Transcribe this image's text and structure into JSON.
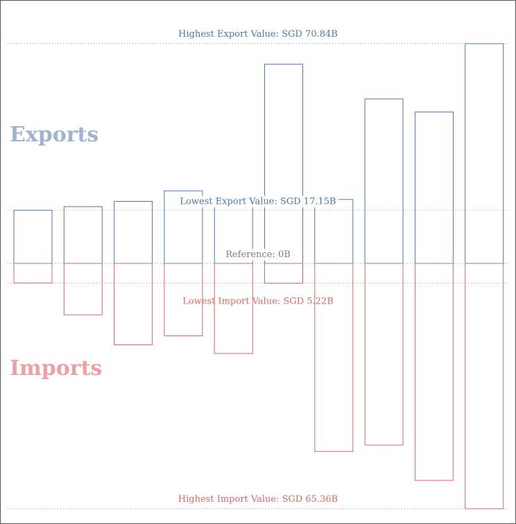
{
  "chart_data": {
    "type": "bar",
    "series": [
      {
        "name": "Exports",
        "direction": "up",
        "color": "#4a78a8",
        "values": [
          17.15,
          18.3,
          20.0,
          23.4,
          20.9,
          64.2,
          20.6,
          53.0,
          48.8,
          70.84
        ]
      },
      {
        "name": "Imports",
        "direction": "down",
        "color": "#e06666",
        "values": [
          5.22,
          13.7,
          21.7,
          19.3,
          24.0,
          5.3,
          50.1,
          48.4,
          57.8,
          65.36
        ]
      }
    ],
    "ylim": [
      -65.36,
      70.84
    ],
    "reference_lines": [
      {
        "label": "Highest Export Value: SGD 70.84B",
        "value": 70.84,
        "color": "#4a78a8"
      },
      {
        "label": "Lowest Export Value: SGD 17.15B",
        "value": 17.15,
        "color": "#4a78a8"
      },
      {
        "label": "Reference: 0B",
        "value": 0,
        "color": "#7f7f7f"
      },
      {
        "label": "Lowest Import Value: SGD 5.22B",
        "value": -5.22,
        "color": "#e06666"
      },
      {
        "label": "Highest Import Value: SGD 65.36B",
        "value": -65.36,
        "color": "#e06666"
      }
    ],
    "annotations": [
      {
        "text": "Exports",
        "color": "#9fb4d0"
      },
      {
        "text": "Imports",
        "color": "#ef9fa4"
      }
    ],
    "grid": false,
    "legend": "none"
  }
}
